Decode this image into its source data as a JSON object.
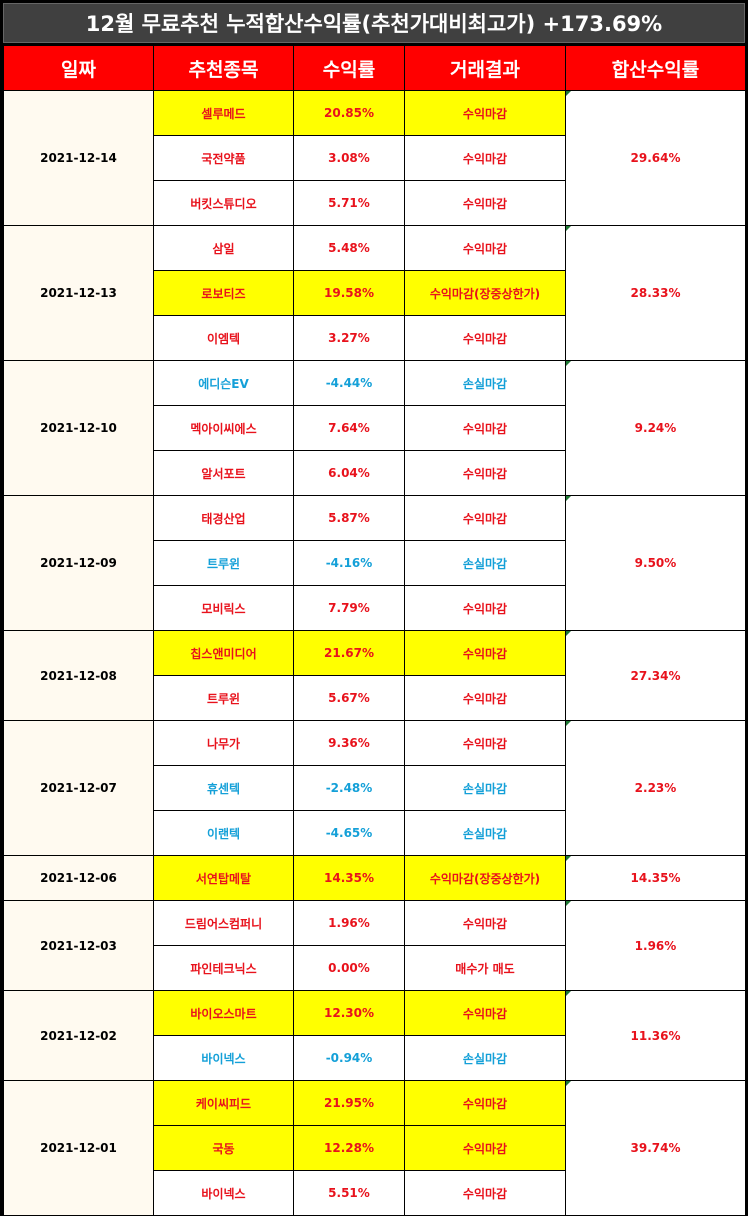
{
  "title": "12월 무료추천 누적합산수익률(추천가대비최고가) +173.69%",
  "headers": [
    "일짜",
    "추천종목",
    "수익률",
    "거래결과",
    "합산수익률"
  ],
  "colors": {
    "header_bg": "#ff0000",
    "highlight": "#ffff00",
    "gain": "#e8121c",
    "loss": "#14a0d8"
  },
  "groups": [
    {
      "date": "2021-12-14",
      "total": "29.64%",
      "rows": [
        {
          "stock": "셀루메드",
          "rate": "20.85%",
          "result": "수익마감",
          "tone": "red",
          "hl": true
        },
        {
          "stock": "국전약품",
          "rate": "3.08%",
          "result": "수익마감",
          "tone": "red",
          "hl": false
        },
        {
          "stock": "버킷스튜디오",
          "rate": "5.71%",
          "result": "수익마감",
          "tone": "red",
          "hl": false
        }
      ]
    },
    {
      "date": "2021-12-13",
      "total": "28.33%",
      "rows": [
        {
          "stock": "삼일",
          "rate": "5.48%",
          "result": "수익마감",
          "tone": "red",
          "hl": false
        },
        {
          "stock": "로보티즈",
          "rate": "19.58%",
          "result": "수익마감(장중상한가)",
          "tone": "red",
          "hl": true
        },
        {
          "stock": "이엠텍",
          "rate": "3.27%",
          "result": "수익마감",
          "tone": "red",
          "hl": false
        }
      ]
    },
    {
      "date": "2021-12-10",
      "total": "9.24%",
      "rows": [
        {
          "stock": "에디슨EV",
          "rate": "-4.44%",
          "result": "손실마감",
          "tone": "blue",
          "hl": false
        },
        {
          "stock": "멕아이씨에스",
          "rate": "7.64%",
          "result": "수익마감",
          "tone": "red",
          "hl": false
        },
        {
          "stock": "알서포트",
          "rate": "6.04%",
          "result": "수익마감",
          "tone": "red",
          "hl": false
        }
      ]
    },
    {
      "date": "2021-12-09",
      "total": "9.50%",
      "rows": [
        {
          "stock": "태경산업",
          "rate": "5.87%",
          "result": "수익마감",
          "tone": "red",
          "hl": false
        },
        {
          "stock": "트루윈",
          "rate": "-4.16%",
          "result": "손실마감",
          "tone": "blue",
          "hl": false
        },
        {
          "stock": "모비릭스",
          "rate": "7.79%",
          "result": "수익마감",
          "tone": "red",
          "hl": false
        }
      ]
    },
    {
      "date": "2021-12-08",
      "total": "27.34%",
      "rows": [
        {
          "stock": "칩스앤미디어",
          "rate": "21.67%",
          "result": "수익마감",
          "tone": "red",
          "hl": true
        },
        {
          "stock": "트루윈",
          "rate": "5.67%",
          "result": "수익마감",
          "tone": "red",
          "hl": false
        }
      ]
    },
    {
      "date": "2021-12-07",
      "total": "2.23%",
      "rows": [
        {
          "stock": "나무가",
          "rate": "9.36%",
          "result": "수익마감",
          "tone": "red",
          "hl": false
        },
        {
          "stock": "휴센텍",
          "rate": "-2.48%",
          "result": "손실마감",
          "tone": "blue",
          "hl": false
        },
        {
          "stock": "이랜텍",
          "rate": "-4.65%",
          "result": "손실마감",
          "tone": "blue",
          "hl": false
        }
      ]
    },
    {
      "date": "2021-12-06",
      "total": "14.35%",
      "rows": [
        {
          "stock": "서연탑메탈",
          "rate": "14.35%",
          "result": "수익마감(장중상한가)",
          "tone": "red",
          "hl": true
        }
      ]
    },
    {
      "date": "2021-12-03",
      "total": "1.96%",
      "rows": [
        {
          "stock": "드림어스컴퍼니",
          "rate": "1.96%",
          "result": "수익마감",
          "tone": "red",
          "hl": false
        },
        {
          "stock": "파인테크닉스",
          "rate": "0.00%",
          "result": "매수가 매도",
          "tone": "red",
          "hl": false
        }
      ]
    },
    {
      "date": "2021-12-02",
      "total": "11.36%",
      "rows": [
        {
          "stock": "바이오스마트",
          "rate": "12.30%",
          "result": "수익마감",
          "tone": "red",
          "hl": true
        },
        {
          "stock": "바이넥스",
          "rate": "-0.94%",
          "result": "손실마감",
          "tone": "blue",
          "hl": false
        }
      ]
    },
    {
      "date": "2021-12-01",
      "total": "39.74%",
      "rows": [
        {
          "stock": "케이씨피드",
          "rate": "21.95%",
          "result": "수익마감",
          "tone": "red",
          "hl": true
        },
        {
          "stock": "국동",
          "rate": "12.28%",
          "result": "수익마감",
          "tone": "red",
          "hl": true
        },
        {
          "stock": "바이넥스",
          "rate": "5.51%",
          "result": "수익마감",
          "tone": "red",
          "hl": false
        }
      ]
    }
  ]
}
